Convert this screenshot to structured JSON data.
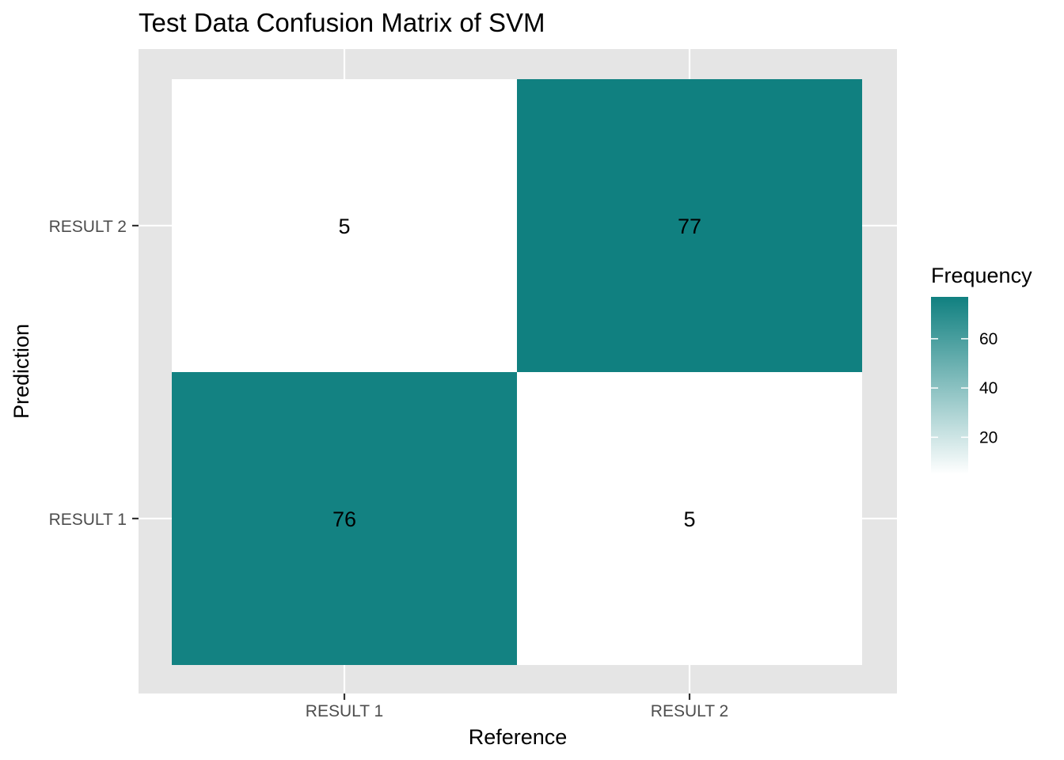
{
  "chart_data": {
    "type": "heatmap",
    "title": "Test Data Confusion Matrix of SVM",
    "xlabel": "Reference",
    "ylabel": "Prediction",
    "x_categories": [
      "RESULT 1",
      "RESULT 2"
    ],
    "y_categories": [
      "RESULT 1",
      "RESULT 2"
    ],
    "cells": [
      {
        "x": "RESULT 1",
        "y": "RESULT 1",
        "value": 76
      },
      {
        "x": "RESULT 2",
        "y": "RESULT 1",
        "value": 5
      },
      {
        "x": "RESULT 1",
        "y": "RESULT 2",
        "value": 5
      },
      {
        "x": "RESULT 2",
        "y": "RESULT 2",
        "value": 77
      }
    ],
    "legend": {
      "title": "Frequency",
      "ticks": [
        20,
        40,
        60
      ],
      "range": [
        5,
        77
      ],
      "low_color": "#ffffff",
      "high_color": "#108080",
      "placement": "right"
    },
    "panel_background": "#e5e5e5",
    "grid": true
  }
}
